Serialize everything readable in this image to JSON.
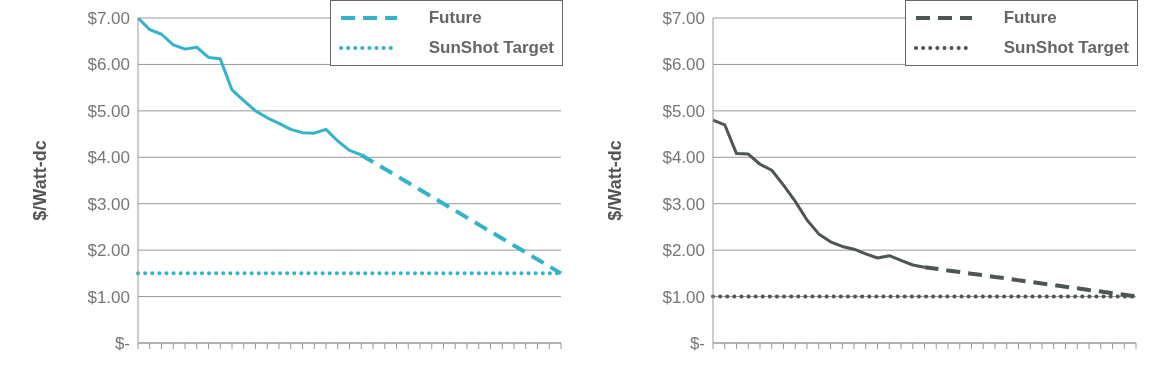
{
  "chart_data": [
    {
      "type": "line",
      "ylabel": "$/Watt-dc",
      "categories": [
        null,
        null,
        null,
        null,
        null,
        null,
        null,
        null,
        null,
        null,
        null,
        null,
        null,
        null,
        null,
        null,
        null,
        null,
        null,
        null,
        null,
        null,
        null,
        null,
        null,
        null,
        null,
        null,
        null,
        null,
        null,
        null,
        null,
        null,
        null,
        null,
        null
      ],
      "series": [
        {
          "color": "#31b4c9",
          "line_style": "solid",
          "values": [
            7.0,
            6.75,
            6.65,
            6.42,
            6.33,
            6.37,
            6.15,
            6.12,
            5.45,
            5.22,
            5.0,
            4.85,
            4.73,
            4.6,
            4.53,
            4.52,
            4.6,
            4.35,
            4.15,
            4.05,
            null,
            null,
            null,
            null,
            null,
            null,
            null,
            null,
            null,
            null,
            null,
            null,
            null,
            null,
            null,
            null,
            null
          ]
        },
        {
          "name": "Future",
          "color": "#31b4c9",
          "line_style": "dashed",
          "values": [
            null,
            null,
            null,
            null,
            null,
            null,
            null,
            null,
            null,
            null,
            null,
            null,
            null,
            null,
            null,
            null,
            null,
            null,
            null,
            4.05,
            3.9,
            3.75,
            3.6,
            3.45,
            3.3,
            3.15,
            3.0,
            2.85,
            2.7,
            2.55,
            2.4,
            2.25,
            2.1,
            1.95,
            1.8,
            1.65,
            1.5
          ]
        },
        {
          "name": "SunShot Target",
          "color": "#31b4c9",
          "line_style": "dotted",
          "values": [
            1.5,
            1.5,
            1.5,
            1.5,
            1.5,
            1.5,
            1.5,
            1.5,
            1.5,
            1.5,
            1.5,
            1.5,
            1.5,
            1.5,
            1.5,
            1.5,
            1.5,
            1.5,
            1.5,
            1.5,
            1.5,
            1.5,
            1.5,
            1.5,
            1.5,
            1.5,
            1.5,
            1.5,
            1.5,
            1.5,
            1.5,
            1.5,
            1.5,
            1.5,
            1.5,
            1.5,
            1.5
          ]
        }
      ],
      "ylim": [
        0,
        7
      ],
      "yticks": [
        {
          "value": 0,
          "label": "$-"
        },
        {
          "value": 1,
          "label": "$1.00"
        },
        {
          "value": 2,
          "label": "$2.00"
        },
        {
          "value": 3,
          "label": "$3.00"
        },
        {
          "value": 4,
          "label": "$4.00"
        },
        {
          "value": 5,
          "label": "$5.00"
        },
        {
          "value": 6,
          "label": "$6.00"
        },
        {
          "value": 7,
          "label": "$7.00"
        }
      ],
      "grid": "y",
      "legend": "top right",
      "marker": "none",
      "tick_labels": "y"
    },
    {
      "type": "line",
      "ylabel": "$/Watt-dc",
      "categories": [
        null,
        null,
        null,
        null,
        null,
        null,
        null,
        null,
        null,
        null,
        null,
        null,
        null,
        null,
        null,
        null,
        null,
        null,
        null,
        null,
        null,
        null,
        null,
        null,
        null,
        null,
        null,
        null,
        null,
        null,
        null,
        null,
        null,
        null,
        null,
        null,
        null
      ],
      "series": [
        {
          "color": "#4d5557",
          "line_style": "solid",
          "values": [
            4.8,
            4.7,
            4.08,
            4.07,
            3.85,
            3.72,
            3.4,
            3.05,
            2.65,
            2.35,
            2.18,
            2.08,
            2.02,
            1.92,
            1.83,
            1.88,
            1.78,
            1.68,
            1.63,
            null,
            null,
            null,
            null,
            null,
            null,
            null,
            null,
            null,
            null,
            null,
            null,
            null,
            null,
            null,
            null,
            null,
            null
          ]
        },
        {
          "name": "Future",
          "color": "#4d5557",
          "line_style": "dashed",
          "values": [
            null,
            null,
            null,
            null,
            null,
            null,
            null,
            null,
            null,
            null,
            null,
            null,
            null,
            null,
            null,
            null,
            null,
            null,
            1.63,
            1.6,
            1.56,
            1.53,
            1.49,
            1.46,
            1.42,
            1.39,
            1.35,
            1.32,
            1.28,
            1.25,
            1.21,
            1.18,
            1.14,
            1.11,
            1.07,
            1.04,
            1.0
          ]
        },
        {
          "name": "SunShot Target",
          "color": "#4d5557",
          "line_style": "dotted",
          "values": [
            1.0,
            1.0,
            1.0,
            1.0,
            1.0,
            1.0,
            1.0,
            1.0,
            1.0,
            1.0,
            1.0,
            1.0,
            1.0,
            1.0,
            1.0,
            1.0,
            1.0,
            1.0,
            1.0,
            1.0,
            1.0,
            1.0,
            1.0,
            1.0,
            1.0,
            1.0,
            1.0,
            1.0,
            1.0,
            1.0,
            1.0,
            1.0,
            1.0,
            1.0,
            1.0,
            1.0,
            1.0
          ]
        }
      ],
      "ylim": [
        0,
        7
      ],
      "yticks": [
        {
          "value": 0,
          "label": "$-"
        },
        {
          "value": 1,
          "label": "$1.00"
        },
        {
          "value": 2,
          "label": "$2.00"
        },
        {
          "value": 3,
          "label": "$3.00"
        },
        {
          "value": 4,
          "label": "$4.00"
        },
        {
          "value": 5,
          "label": "$5.00"
        },
        {
          "value": 6,
          "label": "$6.00"
        },
        {
          "value": 7,
          "label": "$7.00"
        }
      ],
      "grid": "y",
      "legend": "top right",
      "marker": "none",
      "tick_labels": "y"
    }
  ]
}
